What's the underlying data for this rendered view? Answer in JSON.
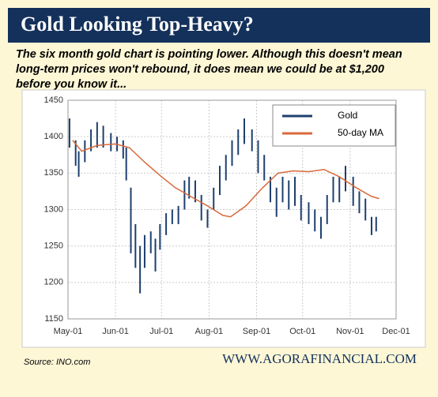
{
  "chart_data": {
    "type": "line",
    "title": "Gold Looking Top-Heavy?",
    "subtitle_lines": [
      "The six month gold chart is pointing lower. Although this doesn't mean",
      "long-term prices won't rebound, it does mean we could be at $1,200",
      "before you know it..."
    ],
    "source": "Source: INO.com",
    "website": "WWW.AGORAFINANCIAL.COM",
    "xlim": [
      "May-01",
      "Dec-01"
    ],
    "xticks": [
      "May-01",
      "Jun-01",
      "Jul-01",
      "Aug-01",
      "Sep-01",
      "Oct-01",
      "Nov-01",
      "Dec-01"
    ],
    "ylim": [
      1150,
      1450
    ],
    "yticks": [
      1150,
      1200,
      1250,
      1300,
      1350,
      1400,
      1450
    ],
    "grid": true,
    "legend": "upper right",
    "series": [
      {
        "name": "Gold",
        "type": "high-low",
        "color": "#1d3f6e",
        "x": [
          "May-02",
          "May-06",
          "May-08",
          "May-12",
          "May-16",
          "May-20",
          "May-24",
          "May-29",
          "Jun-02",
          "Jun-06",
          "Jun-08",
          "Jun-11",
          "Jun-14",
          "Jun-17",
          "Jun-20",
          "Jun-24",
          "Jun-27",
          "Jun-30",
          "Jul-04",
          "Jul-08",
          "Jul-12",
          "Jul-16",
          "Jul-19",
          "Jul-23",
          "Jul-27",
          "Jul-31",
          "Aug-04",
          "Aug-08",
          "Aug-12",
          "Aug-16",
          "Aug-20",
          "Aug-24",
          "Aug-29",
          "Sep-02",
          "Sep-06",
          "Sep-10",
          "Sep-14",
          "Sep-18",
          "Sep-22",
          "Sep-26",
          "Sep-30",
          "Oct-05",
          "Oct-09",
          "Oct-13",
          "Oct-17",
          "Oct-21",
          "Oct-25",
          "Oct-29",
          "Nov-03",
          "Nov-07",
          "Nov-11",
          "Nov-15",
          "Nov-18"
        ],
        "high": [
          1425,
          1395,
          1380,
          1395,
          1410,
          1420,
          1415,
          1405,
          1400,
          1395,
          1385,
          1330,
          1280,
          1250,
          1265,
          1270,
          1260,
          1280,
          1295,
          1300,
          1305,
          1340,
          1345,
          1340,
          1320,
          1300,
          1330,
          1360,
          1375,
          1395,
          1410,
          1425,
          1410,
          1395,
          1375,
          1345,
          1330,
          1345,
          1340,
          1345,
          1320,
          1310,
          1300,
          1290,
          1320,
          1345,
          1345,
          1360,
          1345,
          1325,
          1315,
          1290,
          1290
        ],
        "low": [
          1385,
          1360,
          1345,
          1365,
          1380,
          1385,
          1385,
          1380,
          1380,
          1370,
          1340,
          1240,
          1220,
          1185,
          1220,
          1240,
          1215,
          1245,
          1265,
          1280,
          1280,
          1300,
          1315,
          1310,
          1285,
          1275,
          1300,
          1320,
          1340,
          1360,
          1375,
          1390,
          1380,
          1350,
          1340,
          1310,
          1290,
          1310,
          1300,
          1305,
          1285,
          1280,
          1270,
          1260,
          1280,
          1310,
          1310,
          1325,
          1305,
          1295,
          1285,
          1265,
          1270
        ]
      },
      {
        "name": "50-day MA",
        "type": "line",
        "color": "#d8693a",
        "x": [
          "May-04",
          "May-10",
          "May-20",
          "Jun-01",
          "Jun-10",
          "Jun-20",
          "Jul-01",
          "Jul-10",
          "Jul-20",
          "Jul-31",
          "Aug-10",
          "Aug-15",
          "Aug-25",
          "Sep-05",
          "Sep-15",
          "Sep-25",
          "Oct-05",
          "Oct-15",
          "Oct-25",
          "Nov-05",
          "Nov-15",
          "Nov-20"
        ],
        "values": [
          1395,
          1380,
          1388,
          1390,
          1385,
          1365,
          1345,
          1330,
          1318,
          1305,
          1292,
          1290,
          1305,
          1330,
          1350,
          1353,
          1352,
          1355,
          1345,
          1330,
          1318,
          1315
        ]
      }
    ]
  }
}
